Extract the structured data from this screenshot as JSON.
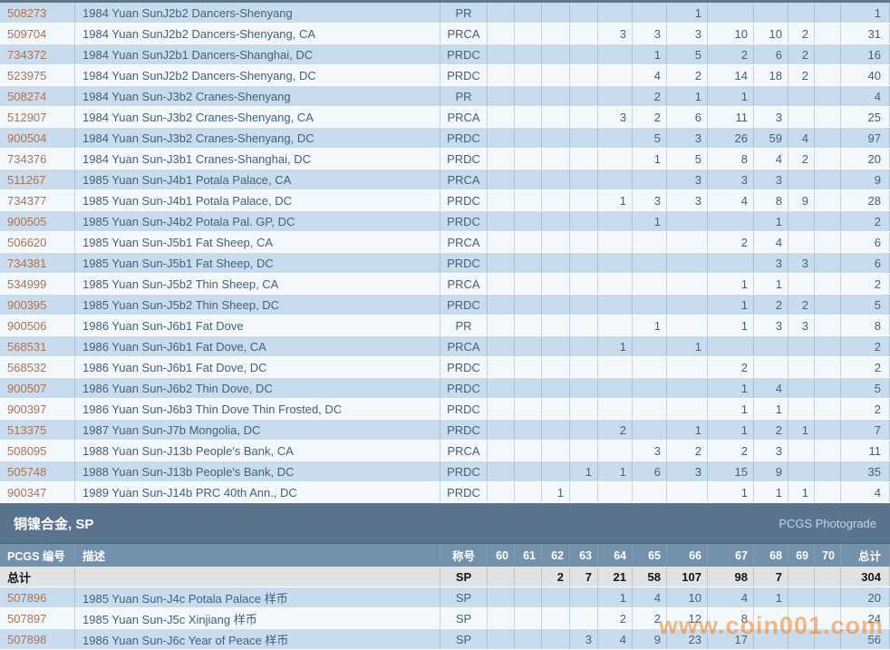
{
  "columns": {
    "pcgs_label": "PCGS 编号",
    "desc_label": "描述",
    "grade_label": "称号",
    "grade_cols": [
      "60",
      "61",
      "62",
      "63",
      "64",
      "65",
      "66",
      "67",
      "68",
      "69",
      "70"
    ],
    "total_label": "总计"
  },
  "top_section": {
    "rows": [
      {
        "pcgs": "508273",
        "desc": "1984 Yuan SunJ2b2 Dancers-Shenyang",
        "grade": "PR",
        "values": [
          "",
          "",
          "",
          "",
          "",
          "",
          "1",
          "",
          "",
          "",
          ""
        ],
        "total": "1"
      },
      {
        "pcgs": "509704",
        "desc": "1984 Yuan SunJ2b2 Dancers-Shenyang, CA",
        "grade": "PRCA",
        "values": [
          "",
          "",
          "",
          "",
          "3",
          "3",
          "3",
          "10",
          "10",
          "2",
          ""
        ],
        "total": "31"
      },
      {
        "pcgs": "734372",
        "desc": "1984 Yuan SunJ2b1 Dancers-Shanghai, DC",
        "grade": "PRDC",
        "values": [
          "",
          "",
          "",
          "",
          "",
          "1",
          "5",
          "2",
          "6",
          "2",
          ""
        ],
        "total": "16"
      },
      {
        "pcgs": "523975",
        "desc": "1984 Yuan SunJ2b2 Dancers-Shenyang, DC",
        "grade": "PRDC",
        "values": [
          "",
          "",
          "",
          "",
          "",
          "4",
          "2",
          "14",
          "18",
          "2",
          ""
        ],
        "total": "40"
      },
      {
        "pcgs": "508274",
        "desc": "1984 Yuan Sun-J3b2 Cranes-Shenyang",
        "grade": "PR",
        "values": [
          "",
          "",
          "",
          "",
          "",
          "2",
          "1",
          "1",
          "",
          "",
          ""
        ],
        "total": "4"
      },
      {
        "pcgs": "512907",
        "desc": "1984 Yuan Sun-J3b2 Cranes-Shenyang, CA",
        "grade": "PRCA",
        "values": [
          "",
          "",
          "",
          "",
          "3",
          "2",
          "6",
          "11",
          "3",
          "",
          ""
        ],
        "total": "25"
      },
      {
        "pcgs": "900504",
        "desc": "1984 Yuan Sun-J3b2 Cranes-Shenyang, DC",
        "grade": "PRDC",
        "values": [
          "",
          "",
          "",
          "",
          "",
          "5",
          "3",
          "26",
          "59",
          "4",
          ""
        ],
        "total": "97"
      },
      {
        "pcgs": "734376",
        "desc": "1984 Yuan Sun-J3b1 Cranes-Shanghai, DC",
        "grade": "PRDC",
        "values": [
          "",
          "",
          "",
          "",
          "",
          "1",
          "5",
          "8",
          "4",
          "2",
          ""
        ],
        "total": "20"
      },
      {
        "pcgs": "511267",
        "desc": "1985 Yuan Sun-J4b1 Potala Palace, CA",
        "grade": "PRCA",
        "values": [
          "",
          "",
          "",
          "",
          "",
          "",
          "3",
          "3",
          "3",
          "",
          ""
        ],
        "total": "9"
      },
      {
        "pcgs": "734377",
        "desc": "1985 Yuan Sun-J4b1 Potala Palace, DC",
        "grade": "PRDC",
        "values": [
          "",
          "",
          "",
          "",
          "1",
          "3",
          "3",
          "4",
          "8",
          "9",
          ""
        ],
        "total": "28"
      },
      {
        "pcgs": "900505",
        "desc": "1985 Yuan Sun-J4b2 Potala Pal. GP, DC",
        "grade": "PRDC",
        "values": [
          "",
          "",
          "",
          "",
          "",
          "1",
          "",
          "",
          "1",
          "",
          ""
        ],
        "total": "2"
      },
      {
        "pcgs": "506620",
        "desc": "1985 Yuan Sun-J5b1 Fat Sheep, CA",
        "grade": "PRCA",
        "values": [
          "",
          "",
          "",
          "",
          "",
          "",
          "",
          "2",
          "4",
          "",
          ""
        ],
        "total": "6"
      },
      {
        "pcgs": "734381",
        "desc": "1985 Yuan Sun-J5b1 Fat Sheep, DC",
        "grade": "PRDC",
        "values": [
          "",
          "",
          "",
          "",
          "",
          "",
          "",
          "",
          "3",
          "3",
          ""
        ],
        "total": "6"
      },
      {
        "pcgs": "534999",
        "desc": "1985 Yuan Sun-J5b2 Thin Sheep, CA",
        "grade": "PRCA",
        "values": [
          "",
          "",
          "",
          "",
          "",
          "",
          "",
          "1",
          "1",
          "",
          ""
        ],
        "total": "2"
      },
      {
        "pcgs": "900395",
        "desc": "1985 Yuan Sun-J5b2 Thin Sheep, DC",
        "grade": "PRDC",
        "values": [
          "",
          "",
          "",
          "",
          "",
          "",
          "",
          "1",
          "2",
          "2",
          ""
        ],
        "total": "5"
      },
      {
        "pcgs": "900506",
        "desc": "1986 Yuan Sun-J6b1 Fat Dove",
        "grade": "PR",
        "values": [
          "",
          "",
          "",
          "",
          "",
          "1",
          "",
          "1",
          "3",
          "3",
          ""
        ],
        "total": "8"
      },
      {
        "pcgs": "568531",
        "desc": "1986 Yuan Sun-J6b1 Fat Dove, CA",
        "grade": "PRCA",
        "values": [
          "",
          "",
          "",
          "",
          "1",
          "",
          "1",
          "",
          "",
          "",
          ""
        ],
        "total": "2"
      },
      {
        "pcgs": "568532",
        "desc": "1986 Yuan Sun-J6b1 Fat Dove, DC",
        "grade": "PRDC",
        "values": [
          "",
          "",
          "",
          "",
          "",
          "",
          "",
          "2",
          "",
          "",
          ""
        ],
        "total": "2"
      },
      {
        "pcgs": "900507",
        "desc": "1986 Yuan Sun-J6b2 Thin Dove, DC",
        "grade": "PRDC",
        "values": [
          "",
          "",
          "",
          "",
          "",
          "",
          "",
          "1",
          "4",
          "",
          ""
        ],
        "total": "5"
      },
      {
        "pcgs": "900397",
        "desc": "1986 Yuan Sun-J6b3 Thin Dove Thin Frosted, DC",
        "grade": "PRDC",
        "values": [
          "",
          "",
          "",
          "",
          "",
          "",
          "",
          "1",
          "1",
          "",
          ""
        ],
        "total": "2"
      },
      {
        "pcgs": "513375",
        "desc": "1987 Yuan Sun-J7b Mongolia, DC",
        "grade": "PRDC",
        "values": [
          "",
          "",
          "",
          "",
          "2",
          "",
          "1",
          "1",
          "2",
          "1",
          ""
        ],
        "total": "7"
      },
      {
        "pcgs": "508095",
        "desc": "1988 Yuan Sun-J13b People's Bank, CA",
        "grade": "PRCA",
        "values": [
          "",
          "",
          "",
          "",
          "",
          "3",
          "2",
          "2",
          "3",
          "",
          ""
        ],
        "total": "11"
      },
      {
        "pcgs": "505748",
        "desc": "1988 Yuan Sun-J13b People's Bank, DC",
        "grade": "PRDC",
        "values": [
          "",
          "",
          "",
          "1",
          "1",
          "6",
          "3",
          "15",
          "9",
          "",
          ""
        ],
        "total": "35"
      },
      {
        "pcgs": "900347",
        "desc": "1989 Yuan Sun-J14b PRC 40th Ann., DC",
        "grade": "PRDC",
        "values": [
          "",
          "",
          "1",
          "",
          "",
          "",
          "",
          "1",
          "1",
          "1",
          ""
        ],
        "total": "4"
      }
    ]
  },
  "sp_section": {
    "title": "铜镍合金, SP",
    "right_label": "PCGS Photograde",
    "total_row": {
      "pcgs": "总计",
      "desc": "",
      "grade": "SP",
      "values": [
        "",
        "",
        "2",
        "7",
        "21",
        "58",
        "107",
        "98",
        "7",
        "",
        ""
      ],
      "total": "304"
    },
    "rows": [
      {
        "pcgs": "507896",
        "desc": "1985 Yuan Sun-J4c Potala Palace 样币",
        "grade": "SP",
        "values": [
          "",
          "",
          "",
          "",
          "1",
          "4",
          "10",
          "4",
          "1",
          "",
          ""
        ],
        "total": "20"
      },
      {
        "pcgs": "507897",
        "desc": "1985 Yuan Sun-J5c Xinjiang 样币",
        "grade": "SP",
        "values": [
          "",
          "",
          "",
          "",
          "2",
          "2",
          "12",
          "8",
          "",
          "",
          ""
        ],
        "total": "24"
      },
      {
        "pcgs": "507898",
        "desc": "1986 Yuan Sun-J6c Year of Peace 样币",
        "grade": "SP",
        "values": [
          "",
          "",
          "",
          "3",
          "4",
          "9",
          "23",
          "17",
          "",
          "",
          ""
        ],
        "total": "56"
      }
    ]
  },
  "watermark": "www.coin001.com",
  "colors": {
    "link_accent": "#b0714f",
    "section_band": "#5a7490",
    "header_row": "#7391ab",
    "row_blue": "#c9dcee",
    "row_white": "#f3f8fc",
    "watermark_orange": "#f5831d"
  }
}
